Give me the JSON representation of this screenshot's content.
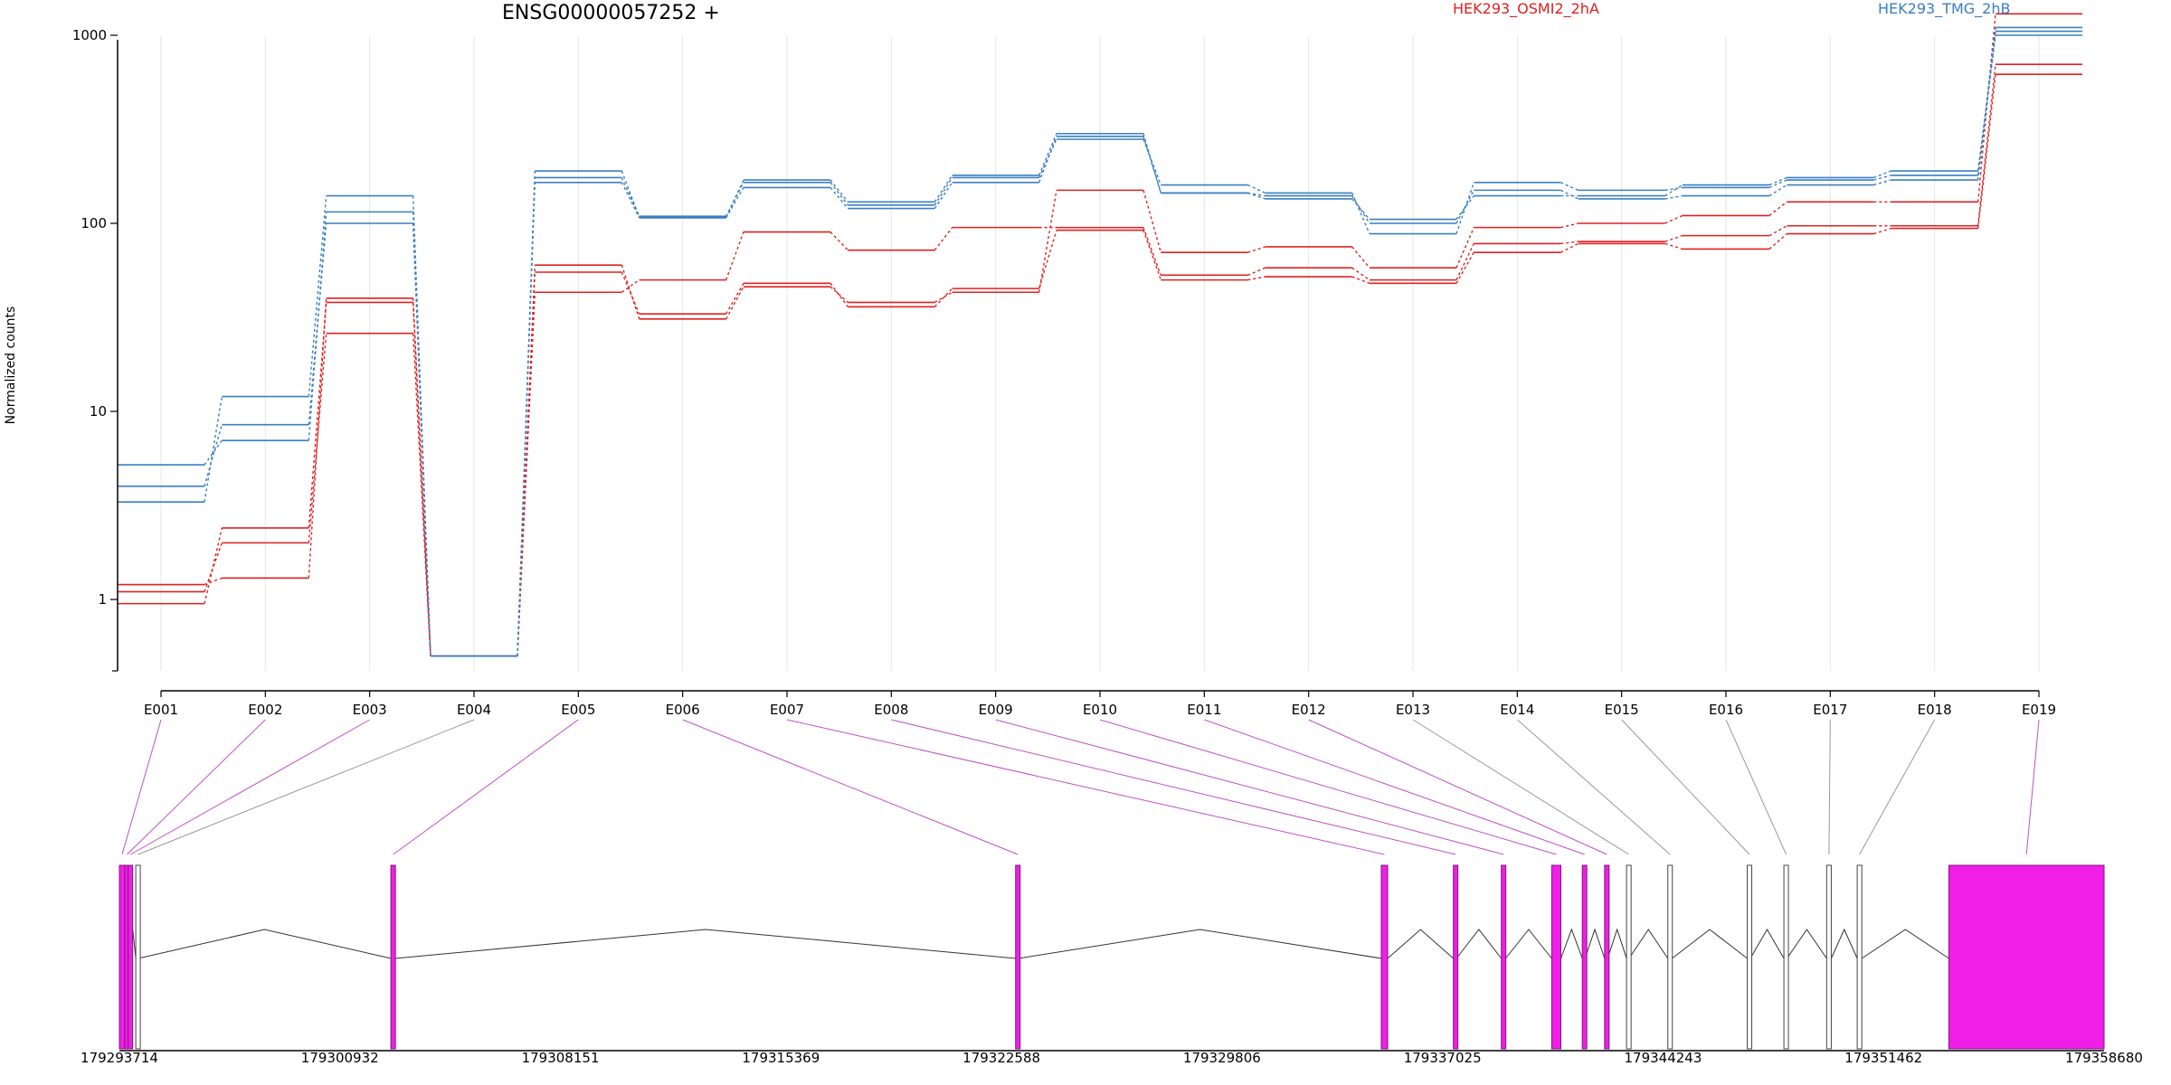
{
  "title": "ENSG00000057252 +",
  "legend": [
    {
      "label": "HEK293_OSMI2_2hA",
      "color": "#e02020"
    },
    {
      "label": "HEK293_TMG_2hB",
      "color": "#3a7fc0"
    }
  ],
  "chart_data": {
    "type": "line",
    "title": "ENSG00000057252 +",
    "ylabel": "Normalized counts",
    "yscale": "log",
    "y_ticks": [
      "1",
      "10",
      "100",
      "1000"
    ],
    "grid": "vertical",
    "legend_placement": "top",
    "categories": [
      "E001",
      "E002",
      "E003",
      "E004",
      "E005",
      "E006",
      "E007",
      "E008",
      "E009",
      "E010",
      "E011",
      "E012",
      "E013",
      "E014",
      "E015",
      "E016",
      "E017",
      "E018",
      "E019"
    ],
    "series": [
      {
        "group": "HEK293_OSMI2_2hA",
        "color": "#e02020",
        "values": [
          1.2,
          1.3,
          40,
          0.5,
          60,
          31,
          46,
          38,
          43,
          150,
          70,
          75,
          58,
          95,
          100,
          110,
          130,
          130,
          1300
        ]
      },
      {
        "group": "HEK293_OSMI2_2hA",
        "color": "#e02020",
        "values": [
          1.1,
          2.0,
          26,
          0.5,
          43,
          50,
          90,
          72,
          95,
          95,
          53,
          58,
          50,
          78,
          80,
          86,
          97,
          97,
          700
        ]
      },
      {
        "group": "HEK293_OSMI2_2hA",
        "color": "#e02020",
        "values": [
          0.95,
          2.4,
          38,
          0.5,
          55,
          33,
          48,
          36,
          45,
          92,
          50,
          52,
          48,
          70,
          78,
          73,
          88,
          94,
          620
        ]
      },
      {
        "group": "HEK293_TMG_2hB",
        "color": "#3a7fc0",
        "values": [
          4.0,
          8.5,
          100,
          0.5,
          165,
          107,
          155,
          120,
          165,
          290,
          145,
          140,
          100,
          150,
          135,
          140,
          160,
          170,
          1050
        ]
      },
      {
        "group": "HEK293_TMG_2hB",
        "color": "#3a7fc0",
        "values": [
          5.2,
          7.0,
          115,
          0.5,
          175,
          109,
          165,
          125,
          175,
          280,
          160,
          145,
          88,
          165,
          150,
          155,
          170,
          180,
          1100
        ]
      },
      {
        "group": "HEK293_TMG_2hB",
        "color": "#3a7fc0",
        "values": [
          3.3,
          12,
          140,
          0.5,
          190,
          108,
          170,
          130,
          180,
          300,
          145,
          135,
          105,
          140,
          140,
          160,
          175,
          190,
          1000
        ]
      }
    ],
    "gene_model": {
      "x_ticks": [
        "179293714",
        "179300932",
        "179308151",
        "179315369",
        "179322588",
        "179329806",
        "179337025",
        "179344243",
        "179351462",
        "179358680"
      ],
      "x_range": [
        179293714,
        179358680
      ],
      "exons": [
        {
          "id": "E001",
          "start": 179293714,
          "end": 179293890,
          "highlight": true
        },
        {
          "id": "E002",
          "start": 179293890,
          "end": 179294000,
          "highlight": true
        },
        {
          "id": "E003",
          "start": 179294000,
          "end": 179294050,
          "highlight": true
        },
        {
          "id": "E004",
          "start": 179294250,
          "end": 179294330,
          "highlight": false
        },
        {
          "id": "E005",
          "start": 179302600,
          "end": 179302750,
          "highlight": true
        },
        {
          "id": "E006",
          "start": 179323050,
          "end": 179323150,
          "highlight": true
        },
        {
          "id": "E007",
          "start": 179335020,
          "end": 179335230,
          "highlight": true
        },
        {
          "id": "E008",
          "start": 179337380,
          "end": 179337480,
          "highlight": true
        },
        {
          "id": "E009",
          "start": 179338950,
          "end": 179339090,
          "highlight": true
        },
        {
          "id": "E010",
          "start": 179340600,
          "end": 179340900,
          "highlight": true
        },
        {
          "id": "E011",
          "start": 179341600,
          "end": 179341690,
          "highlight": true
        },
        {
          "id": "E012",
          "start": 179342330,
          "end": 179342430,
          "highlight": true
        },
        {
          "id": "E013",
          "start": 179343050,
          "end": 179343130,
          "highlight": false
        },
        {
          "id": "E014",
          "start": 179344400,
          "end": 179344540,
          "highlight": false
        },
        {
          "id": "E015",
          "start": 179347000,
          "end": 179347100,
          "highlight": false
        },
        {
          "id": "E016",
          "start": 179348200,
          "end": 179348300,
          "highlight": false
        },
        {
          "id": "E017",
          "start": 179349600,
          "end": 179349750,
          "highlight": false
        },
        {
          "id": "E018",
          "start": 179350600,
          "end": 179350750,
          "highlight": false
        },
        {
          "id": "E019",
          "start": 179353600,
          "end": 179358680,
          "highlight": true
        }
      ]
    }
  }
}
